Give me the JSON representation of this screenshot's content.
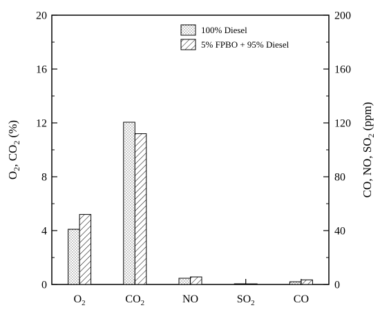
{
  "chart_data": {
    "type": "bar",
    "categories": [
      {
        "base": "O",
        "sub": "2"
      },
      {
        "base": "CO",
        "sub": "2"
      },
      {
        "base": "NO",
        "sub": ""
      },
      {
        "base": "SO",
        "sub": "2"
      },
      {
        "base": "CO",
        "sub": ""
      }
    ],
    "series": [
      {
        "name": "100% Diesel",
        "pattern": "dots",
        "values": [
          4.1,
          12.05,
          4.6,
          0.5,
          2.0
        ]
      },
      {
        "name": "5% FPBO + 95% Diesel",
        "pattern": "hatch",
        "values": [
          5.2,
          11.2,
          5.6,
          0.45,
          3.4
        ]
      }
    ],
    "value_units": [
      "left axis (%)",
      "left axis (%)",
      "right axis (ppm)",
      "right axis (ppm)",
      "right axis (ppm)"
    ],
    "y_left": {
      "label_parts": [
        {
          "t": "O"
        },
        {
          "t": "2",
          "sub": true
        },
        {
          "t": ", CO"
        },
        {
          "t": "2",
          "sub": true
        },
        {
          "t": " (%)"
        }
      ],
      "lim": [
        0,
        20
      ],
      "ticks": [
        0,
        4,
        8,
        12,
        16,
        20
      ]
    },
    "y_right": {
      "label_parts": [
        {
          "t": "CO, NO, SO"
        },
        {
          "t": "2",
          "sub": true
        },
        {
          "t": " (ppm)"
        }
      ],
      "lim": [
        0,
        200
      ],
      "ticks": [
        0,
        40,
        80,
        120,
        160,
        200
      ]
    },
    "legend_position": "top-right",
    "grid": false
  }
}
